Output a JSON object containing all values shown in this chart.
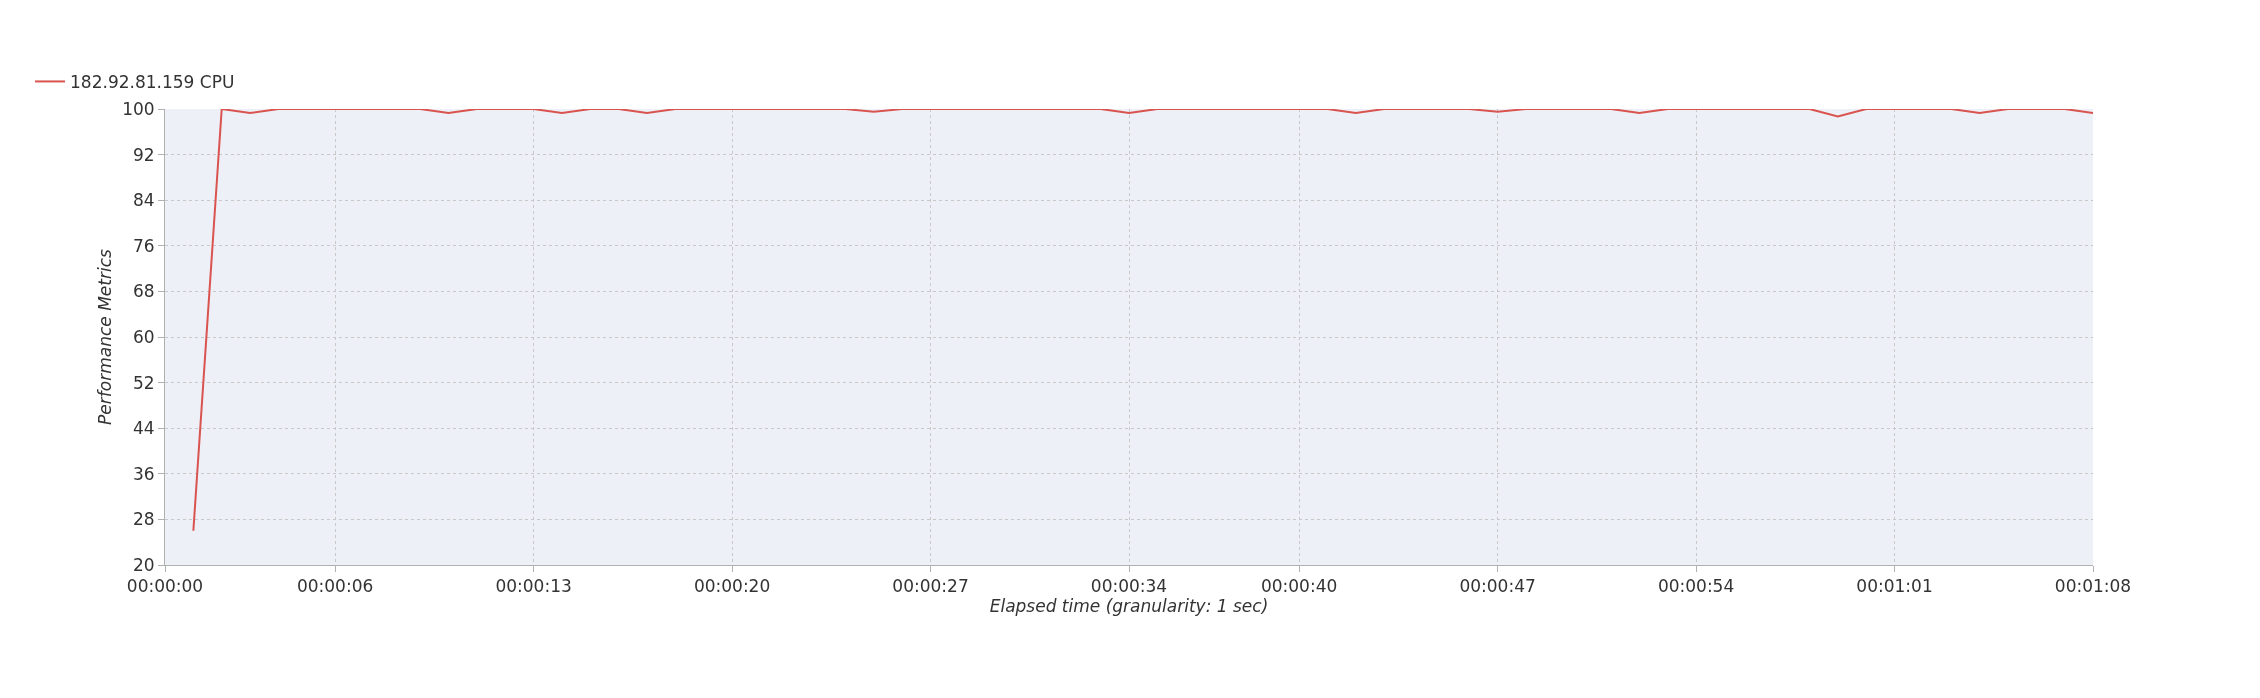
{
  "chart_data": {
    "type": "line",
    "xlabel": "Elapsed time (granularity: 1 sec)",
    "ylabel": "Performance Metrics",
    "x": [
      1,
      2,
      3,
      4,
      5,
      6,
      7,
      8,
      9,
      10,
      11,
      12,
      13,
      14,
      15,
      16,
      17,
      18,
      19,
      20,
      21,
      22,
      23,
      24,
      25,
      26,
      27,
      28,
      29,
      30,
      31,
      32,
      33,
      34,
      35,
      36,
      37,
      38,
      39,
      40,
      41,
      42,
      43,
      44,
      45,
      46,
      47,
      48,
      49,
      50,
      51,
      52,
      53,
      54,
      55,
      56,
      57,
      58,
      59,
      60,
      61,
      62,
      63,
      64,
      65,
      66,
      67,
      68
    ],
    "series": [
      {
        "name": "182.92.81.159 CPU",
        "color": "#d9534f",
        "values": [
          26,
          100,
          99.3,
          100,
          100,
          100,
          100,
          100,
          100,
          99.3,
          100,
          100,
          100,
          99.3,
          100,
          100,
          99.3,
          100,
          100,
          100,
          100,
          100,
          100,
          100,
          99.5,
          100,
          100,
          100,
          100,
          100,
          100,
          100,
          100,
          99.3,
          100,
          100,
          100,
          100,
          100,
          100,
          100,
          99.3,
          100,
          100,
          100,
          100,
          99.5,
          100,
          100,
          100,
          100,
          99.3,
          100,
          100,
          100,
          100,
          100,
          100,
          98.7,
          100,
          100,
          100,
          100,
          99.3,
          100,
          100,
          100,
          99.3
        ]
      }
    ],
    "xlim": [
      0,
      68
    ],
    "xticks": [
      {
        "value": 0,
        "label": "00:00:00"
      },
      {
        "value": 6,
        "label": "00:00:06"
      },
      {
        "value": 13,
        "label": "00:00:13"
      },
      {
        "value": 20,
        "label": "00:00:20"
      },
      {
        "value": 27,
        "label": "00:00:27"
      },
      {
        "value": 34,
        "label": "00:00:34"
      },
      {
        "value": 40,
        "label": "00:00:40"
      },
      {
        "value": 47,
        "label": "00:00:47"
      },
      {
        "value": 54,
        "label": "00:00:54"
      },
      {
        "value": 61,
        "label": "00:01:01"
      },
      {
        "value": 68,
        "label": "00:01:08"
      }
    ],
    "ylim": [
      20,
      100
    ],
    "yticks": [
      20,
      28,
      36,
      44,
      52,
      60,
      68,
      76,
      84,
      92,
      100
    ],
    "grid": true,
    "legend": "top left",
    "marker": "none",
    "line_style": "solid"
  }
}
